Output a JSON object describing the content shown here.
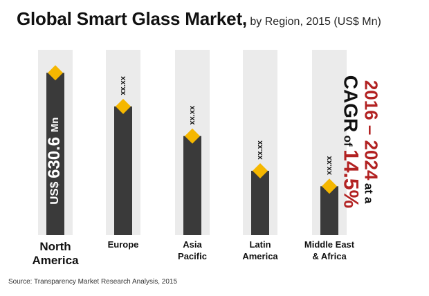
{
  "title": {
    "main": "Global Smart Glass Market,",
    "sub": "by Region, 2015 (US$ Mn)"
  },
  "chart_data": {
    "type": "bar",
    "title": "Global Smart Glass Market, by Region, 2015 (US$ Mn)",
    "categories": [
      "North America",
      "Europe",
      "Asia Pacific",
      "Latin America",
      "Middle East & Africa"
    ],
    "values": [
      630.6,
      500,
      385,
      250,
      190
    ],
    "labels": [
      "US$ 630.6 Mn",
      "xx.xx",
      "xx.xx",
      "xx.xx",
      "xx.xx"
    ],
    "xlabel": "",
    "ylabel": "US$ Mn",
    "ylim": [
      0,
      720
    ]
  },
  "category_lines": [
    [
      "North",
      "America"
    ],
    [
      "Europe"
    ],
    [
      "Asia",
      "Pacific"
    ],
    [
      "Latin",
      "America"
    ],
    [
      "Middle East",
      "& Africa"
    ]
  ],
  "cagr": {
    "line1": "2016 – 2024",
    "at": "at a",
    "line2": "CAGR",
    "of": "of",
    "value": "14.5%"
  },
  "source": "Source: Transparency Market Research Analysis, 2015",
  "colors": {
    "column_bg": "#ebebeb",
    "bar": "#3a3a3a",
    "marker": "#f5b700",
    "accent_red": "#b22222"
  }
}
